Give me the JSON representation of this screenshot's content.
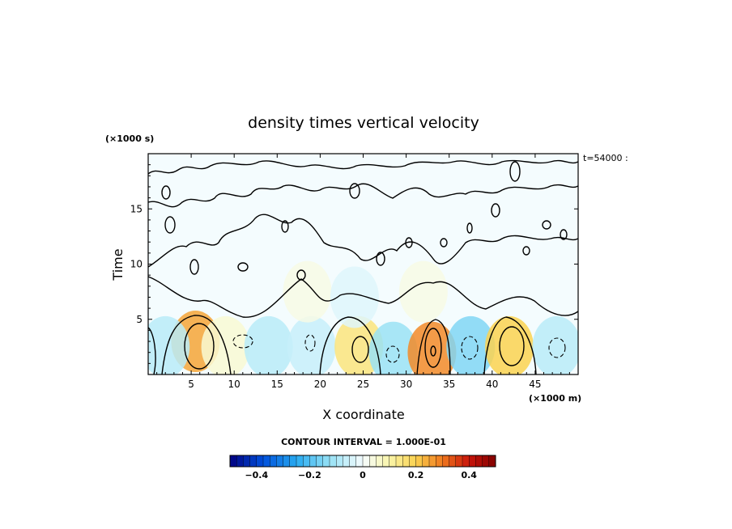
{
  "chart_data": {
    "type": "heatmap",
    "title": "density times vertical velocity",
    "xlabel": "X coordinate",
    "ylabel": "Time",
    "x_unit": "(×1000 m)",
    "y_unit": "(×1000 s)",
    "time_stamp": "t=54000 :",
    "xlim": [
      0,
      50
    ],
    "ylim": [
      0,
      20
    ],
    "x_ticks": [
      5,
      10,
      15,
      20,
      25,
      30,
      35,
      40,
      45
    ],
    "y_ticks": [
      5,
      10,
      15
    ],
    "contour_interval_label": "CONTOUR INTERVAL = 1.000E-01",
    "contour_interval": 0.1,
    "colorbar": {
      "range": [
        -0.5,
        0.5
      ],
      "ticks": [
        -0.4,
        -0.2,
        0,
        0.2,
        0.4
      ],
      "tick_labels": [
        "−0.4",
        "−0.2",
        "0",
        "0.2",
        "0.4"
      ]
    },
    "cells": [
      {
        "x": 5.5,
        "y": 3.0,
        "value": 0.25
      },
      {
        "x": 9.0,
        "y": 2.5,
        "value": 0.05
      },
      {
        "x": 2.0,
        "y": 2.5,
        "value": -0.08
      },
      {
        "x": 14.0,
        "y": 2.5,
        "value": -0.08
      },
      {
        "x": 19.0,
        "y": 2.5,
        "value": -0.06
      },
      {
        "x": 24.5,
        "y": 2.5,
        "value": 0.15
      },
      {
        "x": 28.5,
        "y": 2.0,
        "value": -0.12
      },
      {
        "x": 33.0,
        "y": 2.0,
        "value": 0.28
      },
      {
        "x": 37.5,
        "y": 2.5,
        "value": -0.15
      },
      {
        "x": 42.0,
        "y": 2.5,
        "value": 0.2
      },
      {
        "x": 47.5,
        "y": 2.5,
        "value": -0.08
      },
      {
        "x": 18.5,
        "y": 7.5,
        "value": 0.03
      },
      {
        "x": 24.0,
        "y": 7.0,
        "value": -0.03
      },
      {
        "x": 32.0,
        "y": 7.5,
        "value": 0.03
      }
    ]
  }
}
